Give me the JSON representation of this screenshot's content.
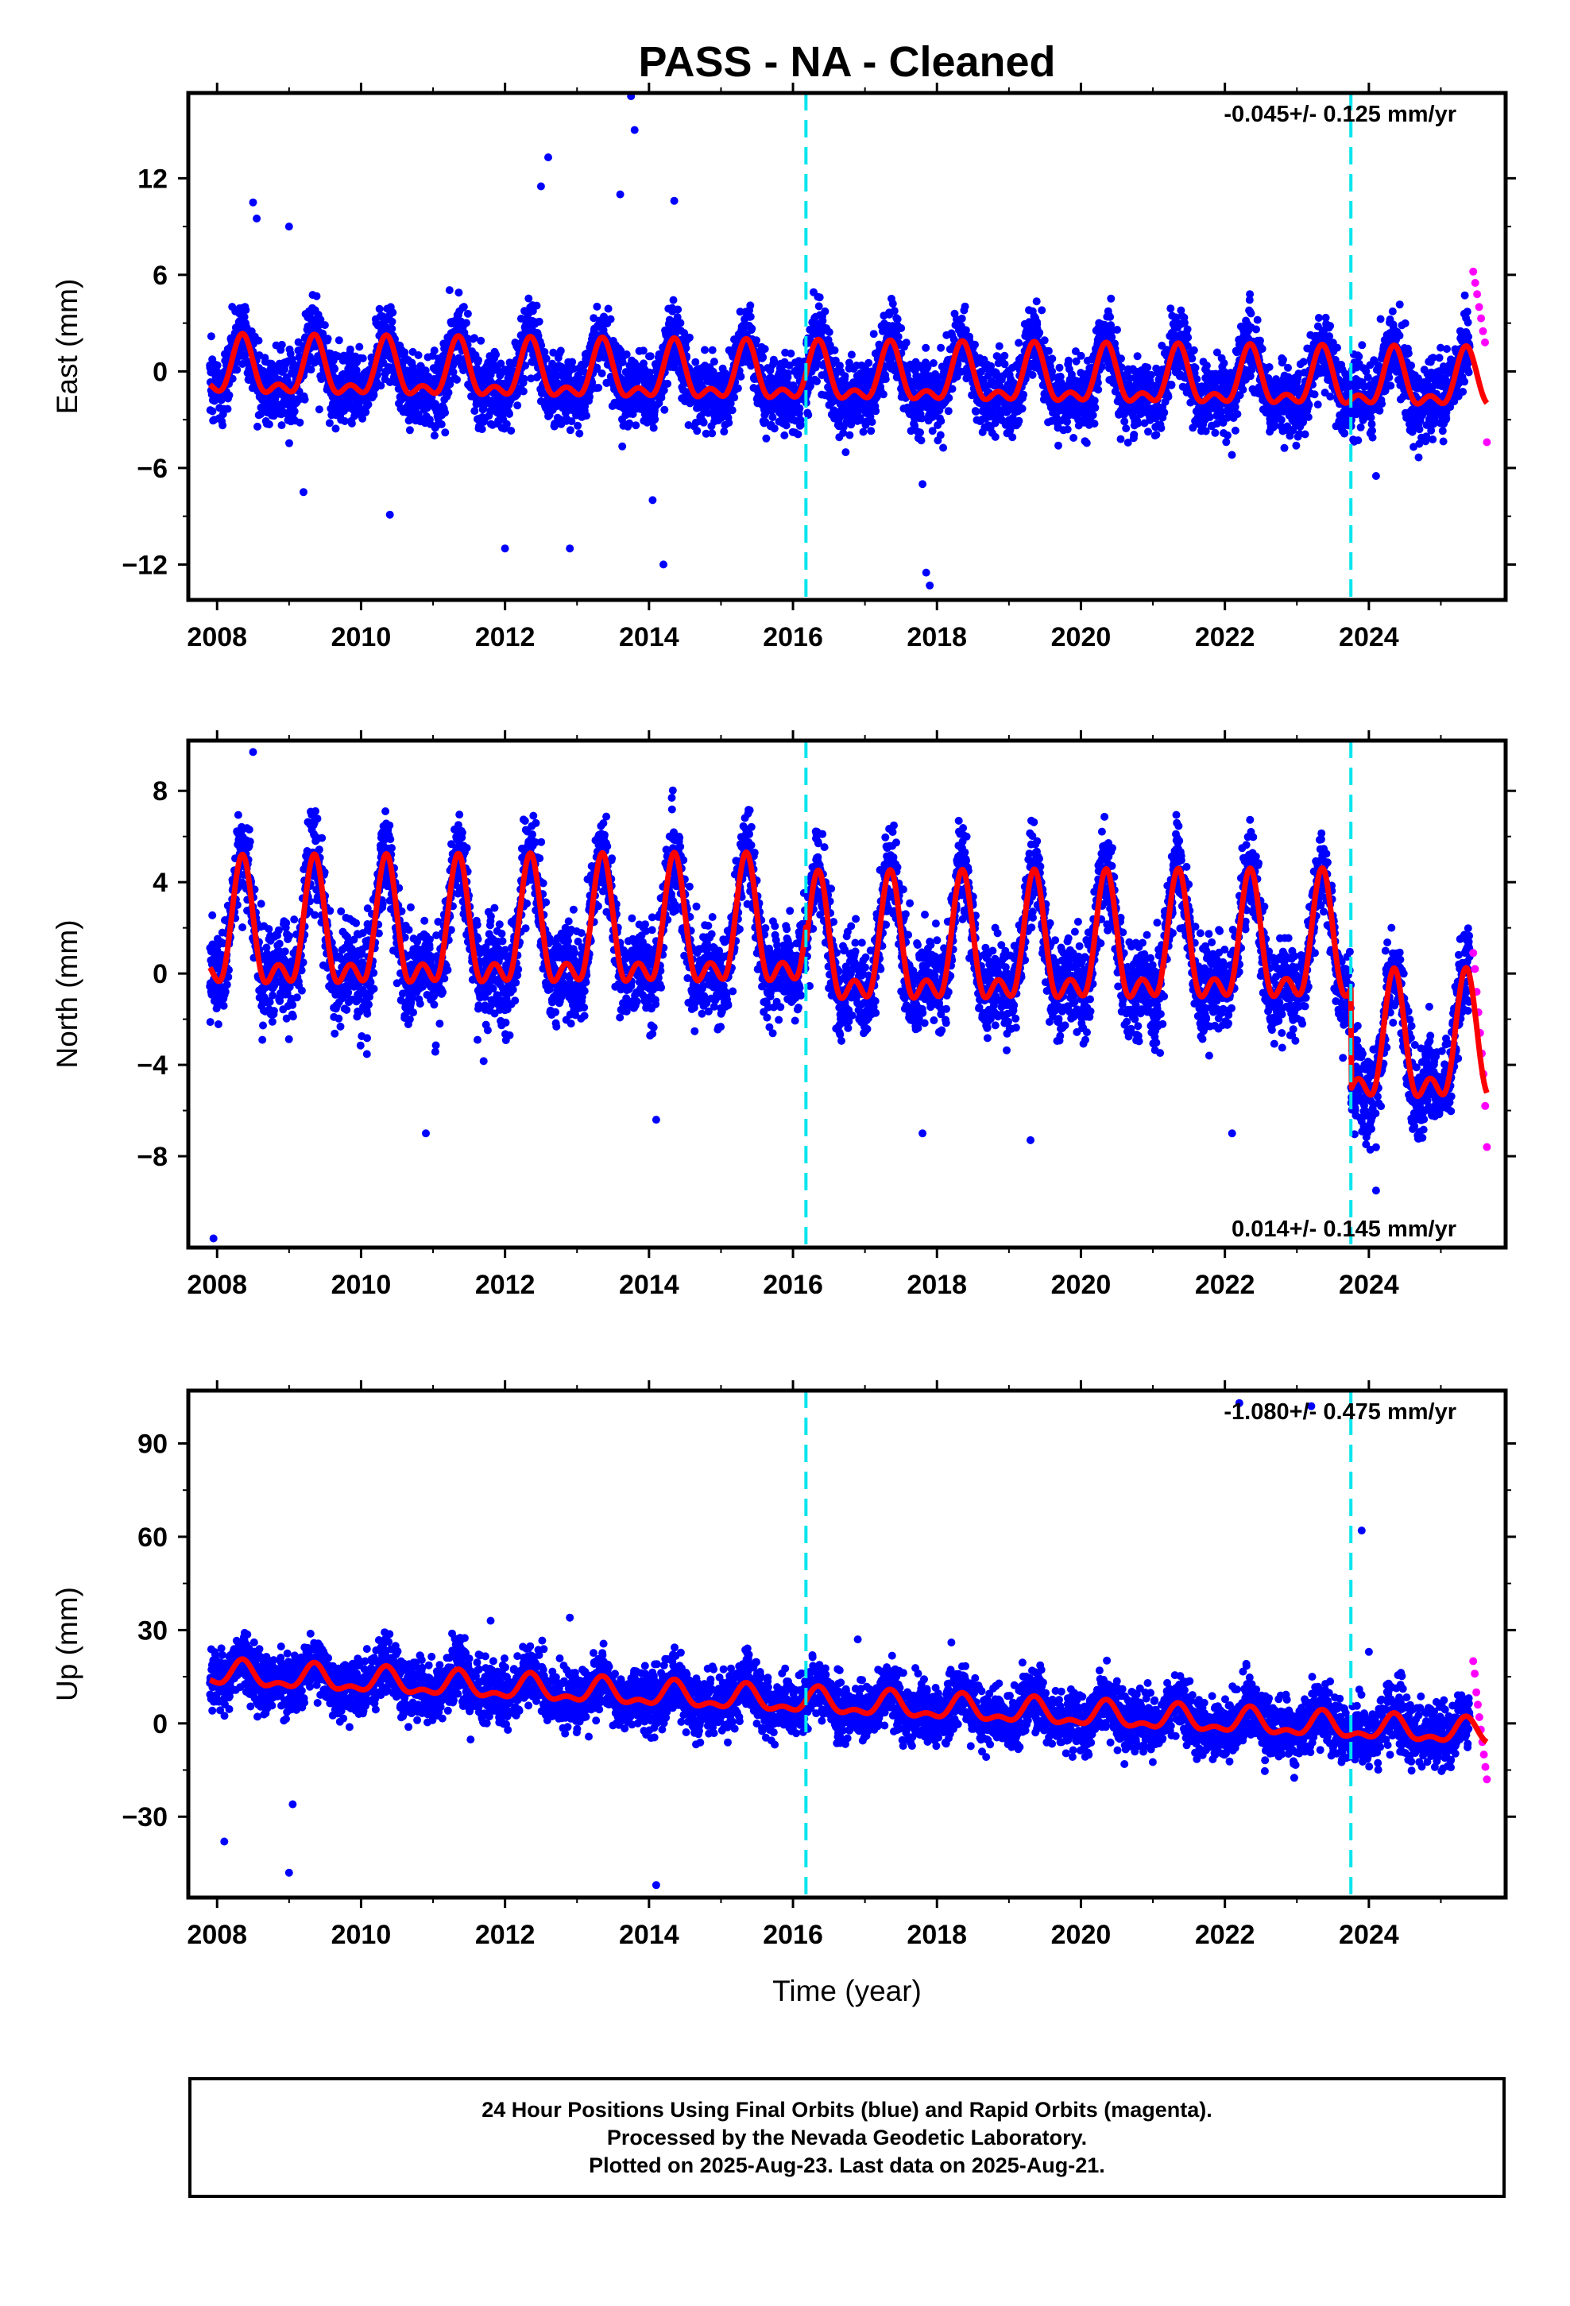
{
  "title": "PASS  - NA - Cleaned",
  "xlabel": "Time (year)",
  "footer": {
    "line1": "24 Hour Positions Using Final Orbits (blue) and Rapid Orbits (magenta).",
    "line2": "Processed by the Nevada Geodetic Laboratory.",
    "line3": "Plotted on 2025-Aug-23. Last data on 2025-Aug-21."
  },
  "colors": {
    "final_orbits": "#0000ff",
    "rapid_orbits": "#ff00ff",
    "model_fit": "#ff0000",
    "equipment_change": "#00e5ee"
  },
  "chart_data": [
    {
      "type": "scatter",
      "ylabel": "East (mm)",
      "rate_label": "-0.045+/- 0.125 mm/yr",
      "rate_position": "top-right",
      "xlim": [
        2007.6,
        2025.9
      ],
      "ylim": [
        -14.2,
        17.3
      ],
      "yticks": [
        -12,
        -6,
        0,
        6,
        12
      ],
      "xticks": [
        2008,
        2010,
        2012,
        2014,
        2016,
        2018,
        2020,
        2022,
        2024
      ],
      "data_span": [
        2007.9,
        2025.4
      ],
      "rapid_span": [
        2025.45,
        2025.64
      ],
      "steps": [
        2016.18,
        2023.75
      ],
      "offsets": [
        0,
        0,
        0
      ],
      "trend": -0.045,
      "base": -0.4,
      "annual_amp": 2.0,
      "noise_sd": 1.1,
      "series": [
        {
          "name": "Final Orbits"
        },
        {
          "name": "Rapid Orbits"
        },
        {
          "name": "Model"
        }
      ],
      "outliers": [
        [
          2008.5,
          10.5
        ],
        [
          2008.55,
          9.5
        ],
        [
          2009.0,
          9.0
        ],
        [
          2009.2,
          -7.5
        ],
        [
          2010.4,
          -8.9
        ],
        [
          2012.0,
          -11.0
        ],
        [
          2012.6,
          13.3
        ],
        [
          2012.5,
          11.5
        ],
        [
          2012.9,
          -11.0
        ],
        [
          2013.6,
          11.0
        ],
        [
          2013.8,
          15.0
        ],
        [
          2013.75,
          17.1
        ],
        [
          2014.2,
          -12.0
        ],
        [
          2014.05,
          -8.0
        ],
        [
          2014.35,
          10.6
        ],
        [
          2017.85,
          -12.5
        ],
        [
          2017.9,
          -13.3
        ],
        [
          2017.8,
          -7.0
        ],
        [
          2024.1,
          -6.5
        ]
      ],
      "rapid_points": [
        6.2,
        5.5,
        4.8,
        4.0,
        3.3,
        2.5,
        1.8,
        -4.4
      ]
    },
    {
      "type": "scatter",
      "ylabel": "North (mm)",
      "rate_label": "0.014+/- 0.145 mm/yr",
      "rate_position": "bottom-right",
      "xlim": [
        2007.6,
        2025.9
      ],
      "ylim": [
        -12.0,
        10.2
      ],
      "yticks": [
        -8,
        -4,
        0,
        4,
        8
      ],
      "xticks": [
        2008,
        2010,
        2012,
        2014,
        2016,
        2018,
        2020,
        2022,
        2024
      ],
      "data_span": [
        2007.9,
        2025.4
      ],
      "rapid_span": [
        2025.45,
        2025.64
      ],
      "steps": [
        2016.18,
        2023.75
      ],
      "offsets": [
        0,
        -0.8,
        -5.2
      ],
      "trend": 0.014,
      "base": 1.6,
      "annual_amp": 3.1,
      "noise_sd": 1.0,
      "series": [
        {
          "name": "Final Orbits"
        },
        {
          "name": "Rapid Orbits"
        },
        {
          "name": "Model"
        }
      ],
      "outliers": [
        [
          2007.95,
          -11.6
        ],
        [
          2008.5,
          9.7
        ],
        [
          2010.9,
          -7.0
        ],
        [
          2014.1,
          -6.4
        ],
        [
          2017.8,
          -7.0
        ],
        [
          2019.3,
          -7.3
        ],
        [
          2022.1,
          -7.0
        ],
        [
          2024.1,
          -9.5
        ]
      ],
      "rapid_points": [
        0.9,
        0.2,
        -0.8,
        -1.7,
        -2.6,
        -3.5,
        -4.4,
        -5.8,
        -7.6
      ]
    },
    {
      "type": "scatter",
      "ylabel": "Up (mm)",
      "rate_label": "-1.080+/- 0.475 mm/yr",
      "rate_position": "top-right",
      "xlim": [
        2007.6,
        2025.9
      ],
      "ylim": [
        -56,
        107
      ],
      "yticks": [
        -30,
        0,
        30,
        60,
        90
      ],
      "xticks": [
        2008,
        2010,
        2012,
        2014,
        2016,
        2018,
        2020,
        2022,
        2024
      ],
      "data_span": [
        2007.9,
        2025.4
      ],
      "rapid_span": [
        2025.45,
        2025.64
      ],
      "steps": [
        2016.18,
        2023.75
      ],
      "offsets": [
        0,
        0,
        0
      ],
      "trend": -1.08,
      "base": 7.0,
      "annual_amp": 4.5,
      "noise_sd": 4.6,
      "series": [
        {
          "name": "Final Orbits"
        },
        {
          "name": "Rapid Orbits"
        },
        {
          "name": "Model"
        }
      ],
      "outliers": [
        [
          2008.1,
          -38
        ],
        [
          2009.0,
          -48
        ],
        [
          2009.05,
          -26
        ],
        [
          2011.8,
          33
        ],
        [
          2012.9,
          34
        ],
        [
          2014.1,
          -52
        ],
        [
          2022.2,
          103
        ],
        [
          2023.2,
          102
        ],
        [
          2023.9,
          62
        ],
        [
          2024.0,
          23
        ],
        [
          2016.9,
          27
        ],
        [
          2018.2,
          26
        ]
      ],
      "rapid_points": [
        20,
        16,
        10,
        6,
        2,
        -2,
        -6,
        -10,
        -14,
        -18
      ]
    }
  ]
}
